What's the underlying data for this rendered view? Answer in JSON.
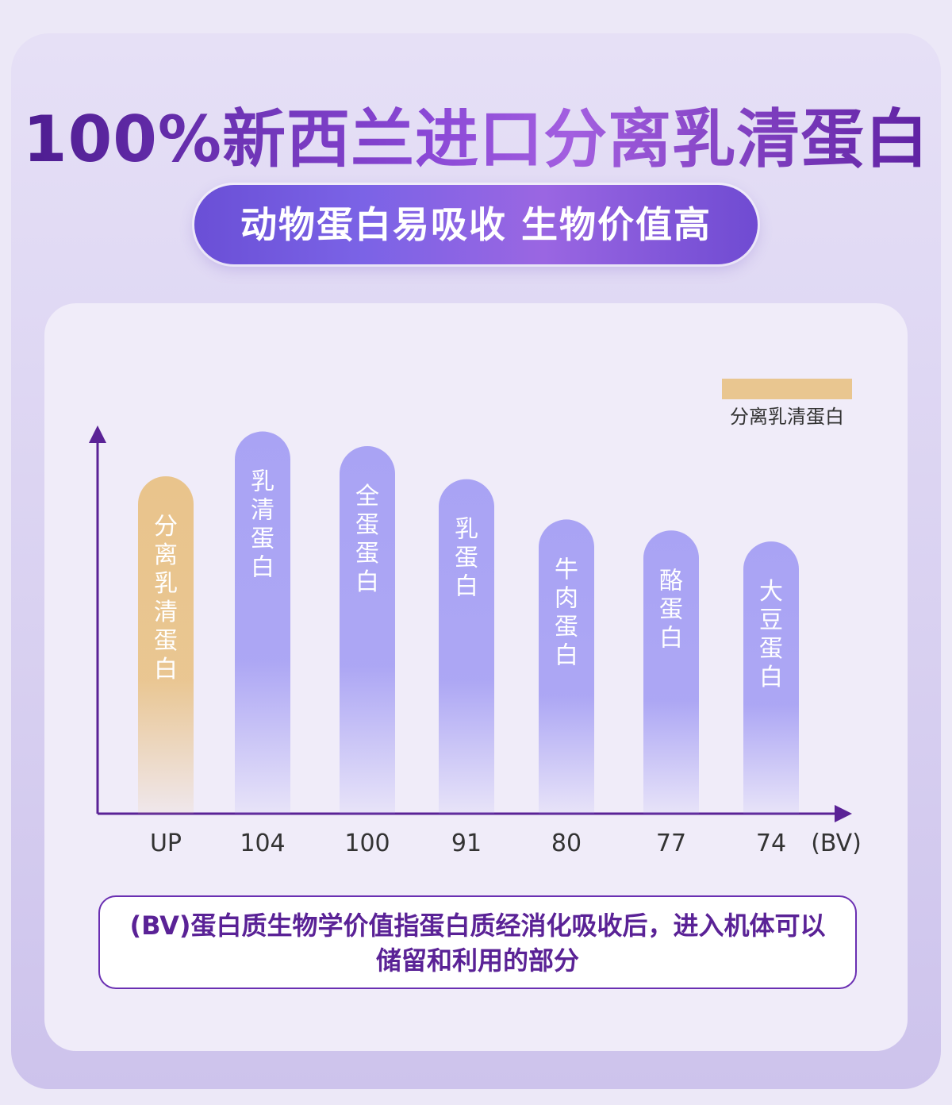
{
  "headline": "100%新西兰进口分离乳清蛋白",
  "subheadline": "动物蛋白易吸收 生物价值高",
  "legend_label": "分离乳清蛋白",
  "note_text": "(BV)蛋白质生物学价值指蛋白质经消化吸收后，进入机体可以储留和利用的部分",
  "colors": {
    "highlight_bar": "#e9c48c",
    "bar": "#a9a3f4",
    "axis": "#5a2296",
    "headline": "#6a26b5"
  },
  "chart_data": {
    "type": "bar",
    "unit_label": "(BV)",
    "categories": [
      "分离乳清蛋白",
      "乳清蛋白",
      "全蛋蛋白",
      "乳蛋白",
      "牛肉蛋白",
      "酪蛋白",
      "大豆蛋白"
    ],
    "tick_labels": [
      "UP",
      "104",
      "100",
      "91",
      "80",
      "77",
      "74"
    ],
    "values": [
      null,
      104,
      100,
      91,
      80,
      77,
      74
    ],
    "highlight_index": 0,
    "grid": false,
    "legend": "top-right"
  }
}
